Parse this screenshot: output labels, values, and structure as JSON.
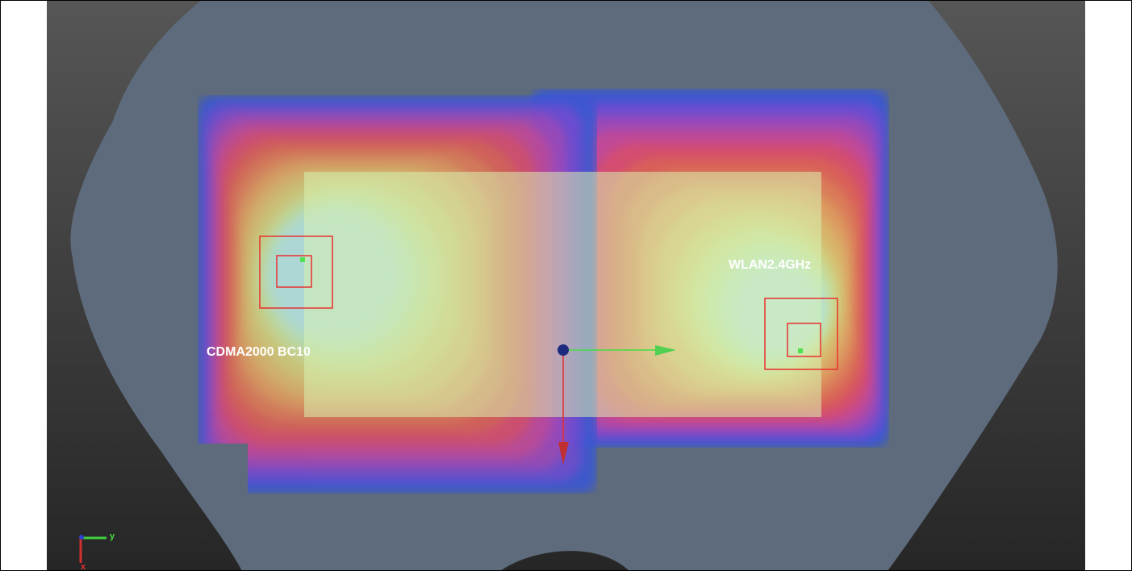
{
  "scan_labels": [
    "CDMA2000 BC10",
    "WLAN2.4GHz"
  ],
  "axis_labels": {
    "x": "x",
    "y": "y"
  }
}
